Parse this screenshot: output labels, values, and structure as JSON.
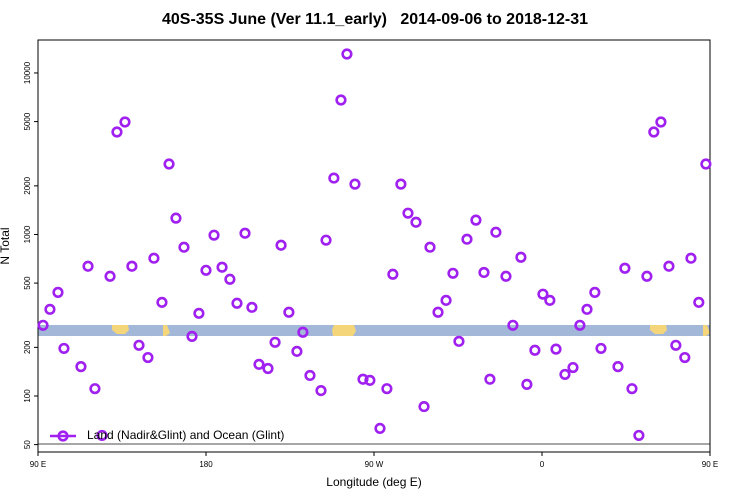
{
  "chart_data": {
    "type": "scatter",
    "title": "40S-35S June (Ver 11.1_early)   2014-09-06 to 2018-12-31",
    "x_label": "Longitude (deg E)",
    "y_label": "N Total",
    "log_y": true,
    "legend": "bottom-left",
    "xlim": [
      90,
      450
    ],
    "xticks": [
      {
        "value": 90,
        "label": "90 E"
      },
      {
        "value": 180,
        "label": "180"
      },
      {
        "value": 270,
        "label": "90 W"
      },
      {
        "value": 360,
        "label": "0"
      },
      {
        "value": 450,
        "label": "90 E"
      }
    ],
    "ylim": [
      45,
      16000
    ],
    "yticks": [
      50,
      100,
      200,
      500,
      1000,
      2000,
      5000,
      10000
    ],
    "x": [
      92.7,
      96.4,
      100.7,
      103.9,
      113,
      116.8,
      120.5,
      124.3,
      128.6,
      132.3,
      136.6,
      140.3,
      144.1,
      148.9,
      152.1,
      156.4,
      160.2,
      163.9,
      168.2,
      172.5,
      176.2,
      180,
      184.3,
      188.6,
      192.8,
      196.6,
      200.9,
      204.6,
      208.4,
      213.2,
      217,
      220.2,
      224.4,
      228.7,
      231.9,
      235.7,
      241.6,
      244.3,
      248.5,
      252.3,
      255.5,
      259.8,
      264.1,
      267.8,
      273.2,
      276.9,
      280.1,
      284.4,
      288.2,
      292.5,
      296.8,
      300,
      304.3,
      308.6,
      312.3,
      315.5,
      319.8,
      324.6,
      328.9,
      332.1,
      335.3,
      340.7,
      344.4,
      348.7,
      351.9,
      356.2,
      360.5,
      364.2,
      367.5,
      372.3,
      376.6,
      380.3,
      384.1,
      388.3,
      391.6,
      400.7,
      404.4,
      408.2,
      411.9,
      416.2,
      419.9,
      423.7,
      428,
      431.7,
      436.5,
      439.8,
      444,
      447.8
    ],
    "series": [
      {
        "name": "Land (Nadir&Glint) and Ocean (Glint)",
        "color": "#a020f0",
        "values": [
          274,
          344,
          438,
          197,
          152,
          636,
          111,
          57,
          551,
          4310,
          4970,
          636,
          206,
          173,
          713,
          380,
          2730,
          1262,
          834,
          234,
          325,
          600,
          990,
          627,
          528,
          375,
          1018,
          354,
          157,
          148,
          215,
          858,
          330,
          189,
          248,
          134,
          108,
          922,
          2235,
          6800,
          13100,
          2050,
          127,
          125,
          63,
          111,
          567,
          2050,
          1355,
          1191,
          86,
          834,
          330,
          391,
          575,
          218,
          935,
          1227,
          582,
          127,
          1033,
          551,
          274,
          723,
          118,
          192,
          427,
          391,
          195,
          136,
          150,
          274,
          344,
          438,
          197,
          152,
          618,
          111,
          57,
          551,
          4310,
          4970,
          636,
          206,
          173,
          713,
          380,
          2730
        ]
      }
    ]
  }
}
